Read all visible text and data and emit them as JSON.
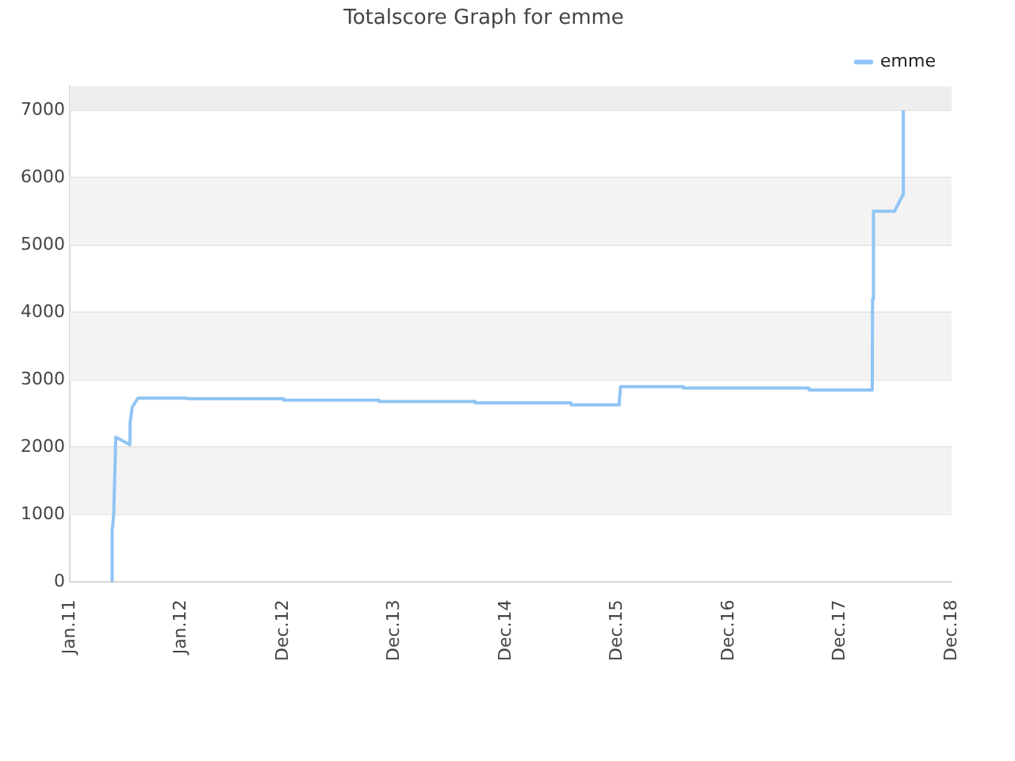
{
  "chart_data": {
    "type": "line",
    "title": "Totalscore Graph for emme",
    "x": [
      "2011-05-19",
      "2011-05-20",
      "2011-05-25",
      "2011-05-28",
      "2011-06-01",
      "2011-07-17",
      "2011-07-18",
      "2011-07-25",
      "2011-08-13",
      "2012-01-20",
      "2012-01-21",
      "2012-12-01",
      "2012-12-02",
      "2013-10-10",
      "2013-10-11",
      "2014-08-21",
      "2014-08-22",
      "2015-07-02",
      "2015-07-03",
      "2015-12-07",
      "2015-12-08",
      "2015-12-12",
      "2016-07-04",
      "2016-07-05",
      "2017-08-20",
      "2017-08-21",
      "2018-03-16",
      "2018-03-17",
      "2018-03-20",
      "2018-05-28",
      "2018-06-25",
      "2018-06-26"
    ],
    "series": [
      {
        "name": "emme",
        "color": "#90c4f4",
        "values": [
          0,
          760,
          1000,
          1500,
          2150,
          2040,
          2370,
          2600,
          2730,
          2730,
          2720,
          2720,
          2700,
          2700,
          2680,
          2680,
          2660,
          2660,
          2630,
          2630,
          2700,
          2900,
          2900,
          2880,
          2880,
          2850,
          2850,
          4200,
          5500,
          5500,
          5750,
          7000
        ]
      }
    ],
    "xlim": [
      "2011-01",
      "2018-12"
    ],
    "xticks": [
      {
        "value": "2011-01",
        "label": "Jan.11"
      },
      {
        "value": "2012-01",
        "label": "Jan.12"
      },
      {
        "value": "2012-12",
        "label": "Dec.12"
      },
      {
        "value": "2013-12",
        "label": "Dec.13"
      },
      {
        "value": "2014-12",
        "label": "Dec.14"
      },
      {
        "value": "2015-12",
        "label": "Dec.15"
      },
      {
        "value": "2016-12",
        "label": "Dec.16"
      },
      {
        "value": "2017-12",
        "label": "Dec.17"
      },
      {
        "value": "2018-12",
        "label": "Dec.18"
      }
    ],
    "ylim": [
      0,
      7350
    ],
    "yticks": [
      0,
      1000,
      2000,
      3000,
      4000,
      5000,
      6000,
      7000
    ],
    "bands": [
      {
        "axis": "y",
        "from": 1000,
        "to": 2000,
        "color": "#f3f3f3"
      },
      {
        "axis": "y",
        "from": 3000,
        "to": 4000,
        "color": "#f3f3f3"
      },
      {
        "axis": "y",
        "from": 5000,
        "to": 6000,
        "color": "#f3f3f3"
      },
      {
        "axis": "y",
        "from": 7000,
        "to": 7350,
        "color": "#eeeeee"
      }
    ],
    "grid": "y",
    "legend": "top right",
    "marker": "none",
    "line_style": "solid"
  }
}
